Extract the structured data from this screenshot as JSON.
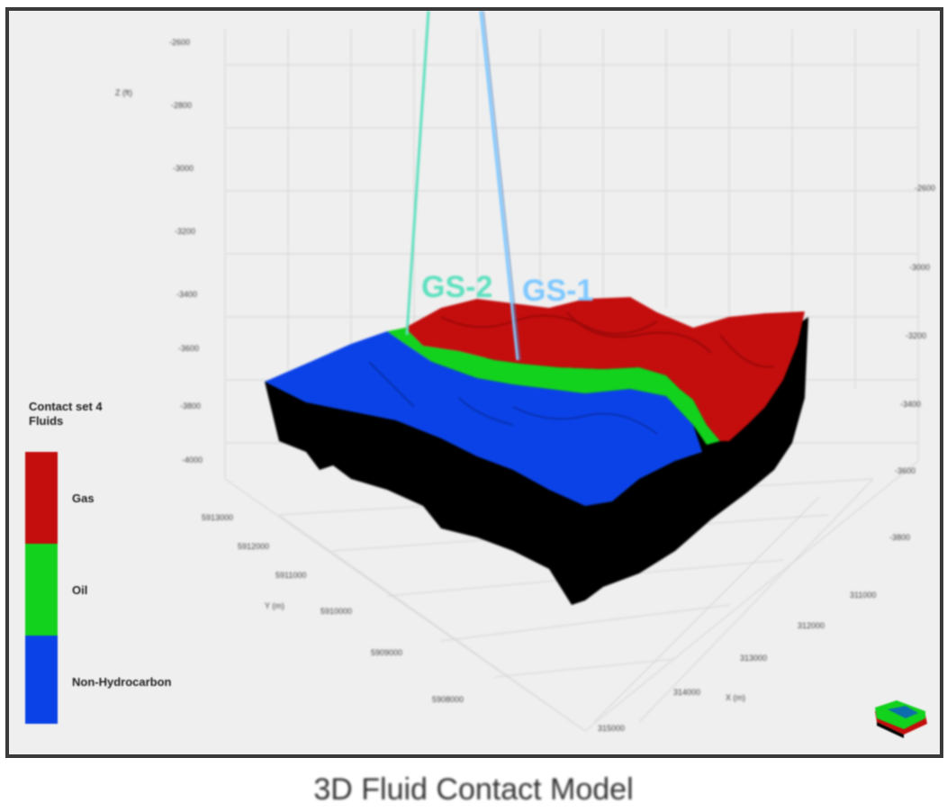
{
  "caption": "3D Fluid Contact Model",
  "wells": [
    {
      "name": "GS-2",
      "color": "#5fe0bf"
    },
    {
      "name": "GS-1",
      "color": "#7ec8ff"
    }
  ],
  "legend": {
    "title_line1": "Contact set 4",
    "title_line2": "Fluids",
    "items": [
      {
        "label": "Gas",
        "color": "#c40d0d"
      },
      {
        "label": "Oil",
        "color": "#12d21e"
      },
      {
        "label": "Non-Hydrocarbon",
        "color": "#0b42e8"
      }
    ]
  },
  "axes": {
    "z_left_title": "Z (ft)",
    "z_left_ticks": [
      "-2600",
      "-2800",
      "-3000",
      "-3200",
      "-3400",
      "-3600",
      "-3800",
      "-4000"
    ],
    "z_right_ticks": [
      "-2600",
      "-3000",
      "-3200",
      "-3400",
      "-3600",
      "-3800"
    ],
    "x_title": "Y (m)",
    "x_ticks": [
      "5913000",
      "5912000",
      "5911000",
      "5910000",
      "5909000",
      "5908000"
    ],
    "y_title": "X (m)",
    "y_ticks": [
      "311000",
      "312000",
      "313000",
      "314000",
      "315000"
    ]
  },
  "colors": {
    "background": "#efefef",
    "frame": "#3a3a3a",
    "gas": "#c40d0d",
    "oil": "#12d21e",
    "water": "#0b42e8",
    "base": "#000000"
  }
}
